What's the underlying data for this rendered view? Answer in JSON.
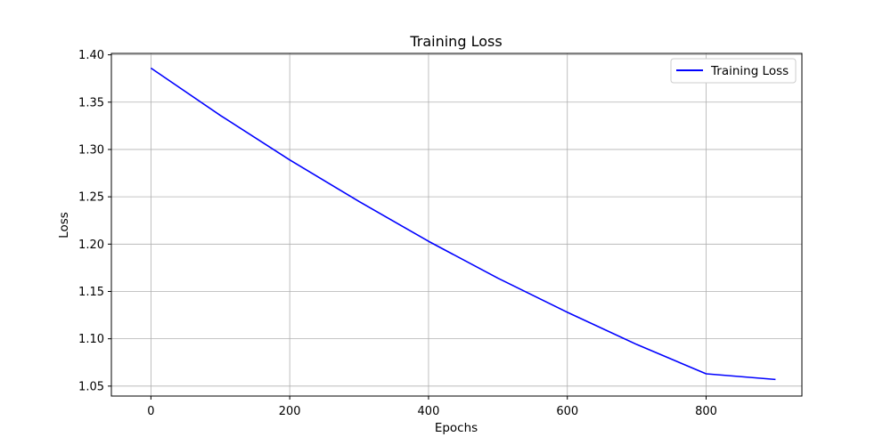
{
  "chart_data": {
    "type": "line",
    "title": "Training Loss",
    "xlabel": "Epochs",
    "ylabel": "Loss",
    "xlim": [
      -57,
      938
    ],
    "ylim": [
      1.0395,
      1.4015
    ],
    "xticks": [
      0,
      200,
      400,
      600,
      800
    ],
    "yticks": [
      1.05,
      1.1,
      1.15,
      1.2,
      1.25,
      1.3,
      1.35,
      1.4
    ],
    "grid": true,
    "legend_position": "top-right",
    "series": [
      {
        "name": "Training Loss",
        "color": "#0000ff",
        "x": [
          0,
          100,
          200,
          300,
          400,
          500,
          600,
          700,
          800,
          900
        ],
        "values": [
          1.386,
          1.336,
          1.289,
          1.245,
          1.203,
          1.164,
          1.128,
          1.094,
          1.063,
          1.057
        ]
      }
    ]
  }
}
